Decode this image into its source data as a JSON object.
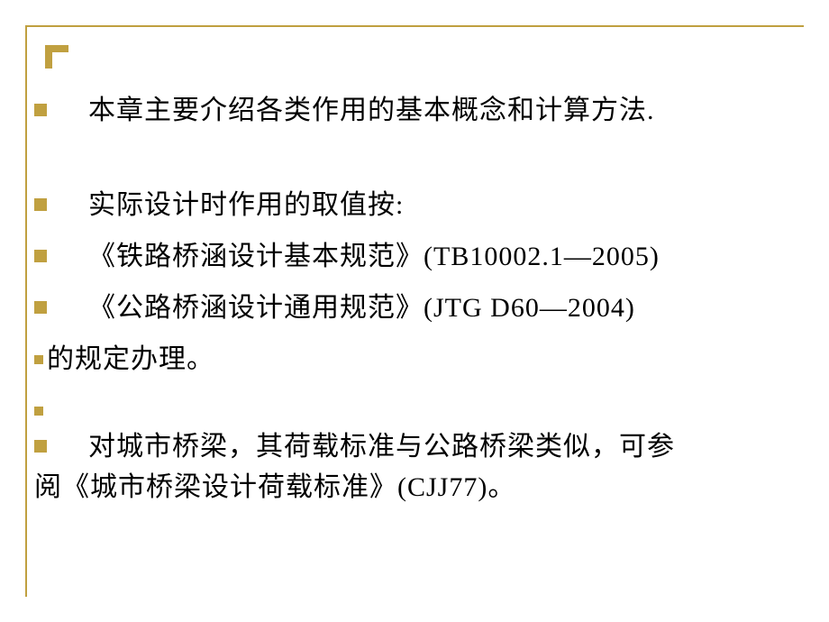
{
  "slide": {
    "border_color": "#c0a040",
    "background_color": "#ffffff",
    "text_color": "#000000",
    "bullet_color": "#c0a040",
    "font_size_pt": 22
  },
  "lines": {
    "l1": "本章主要介绍各类作用的基本概念和计算方法.",
    "l2": "实际设计时作用的取值按:",
    "l3": "《铁路桥涵设计基本规范》(TB10002.1—2005)",
    "l4": "《公路桥涵设计通用规范》(JTG D60—2004)",
    "l5": "的规定办理。",
    "l6": "",
    "l7a": "对城市桥梁，其荷载标准与公路桥梁类似，可参",
    "l7b": "阅《城市桥梁设计荷载标准》(CJJ77)。"
  }
}
